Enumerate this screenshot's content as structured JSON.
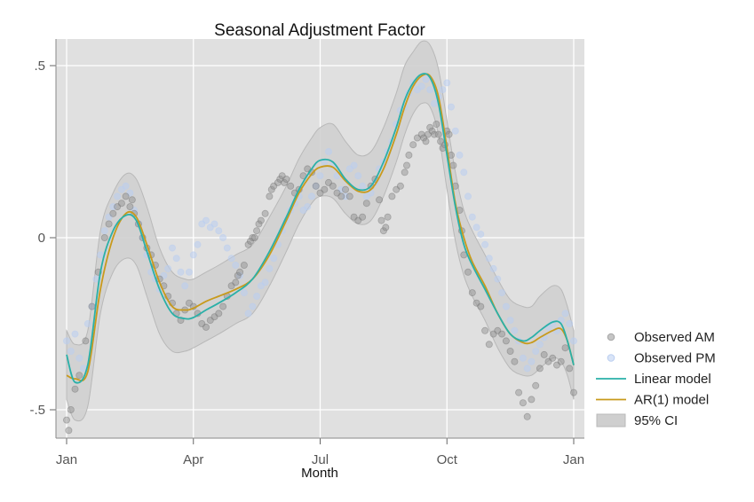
{
  "chart_data": {
    "type": "line",
    "title": "Seasonal Adjustment Factor",
    "xlabel": "Month",
    "ylabel": "",
    "xlim": [
      0,
      12
    ],
    "ylim": [
      -0.6,
      0.58
    ],
    "x_ticks": [
      {
        "value": 0,
        "label": "Jan"
      },
      {
        "value": 3,
        "label": "Apr"
      },
      {
        "value": 6,
        "label": "Jul"
      },
      {
        "value": 9,
        "label": "Oct"
      },
      {
        "value": 12,
        "label": "Jan"
      }
    ],
    "y_ticks": [
      {
        "value": 0.5,
        "label": ".5"
      },
      {
        "value": 0,
        "label": "0"
      },
      {
        "value": -0.5,
        "label": "-.5"
      }
    ],
    "grid": true,
    "legend_position": "right",
    "colors": {
      "plot_background": "#e0e0e0",
      "grid": "#ffffff",
      "linear": "#2ab0a8",
      "ar1": "#c89a1c",
      "ci_fill": "#cfcfcf",
      "ci_stroke": "#b8b8b8",
      "observed_am": "#8c8c8c",
      "observed_pm": "#b9cdf0"
    },
    "series": [
      {
        "name": "Linear model",
        "kind": "line",
        "x": [
          0,
          0.2,
          0.5,
          0.8,
          1.1,
          1.4,
          1.65,
          1.9,
          2.2,
          2.5,
          2.8,
          3.0,
          3.3,
          3.6,
          4.0,
          4.4,
          4.8,
          5.2,
          5.5,
          5.8,
          6.0,
          6.3,
          6.6,
          6.9,
          7.2,
          7.5,
          7.8,
          8.0,
          8.2,
          8.4,
          8.6,
          8.8,
          9.0,
          9.2,
          9.4,
          9.6,
          9.9,
          10.2,
          10.5,
          10.8,
          11.0,
          11.2,
          11.5,
          11.7,
          11.85,
          12.0
        ],
        "y": [
          -0.34,
          -0.42,
          -0.37,
          -0.1,
          0.02,
          0.065,
          0.05,
          -0.04,
          -0.15,
          -0.22,
          -0.235,
          -0.232,
          -0.21,
          -0.19,
          -0.16,
          -0.12,
          -0.04,
          0.06,
          0.14,
          0.2,
          0.225,
          0.22,
          0.17,
          0.14,
          0.15,
          0.22,
          0.32,
          0.4,
          0.45,
          0.475,
          0.465,
          0.39,
          0.24,
          0.09,
          -0.02,
          -0.08,
          -0.15,
          -0.22,
          -0.28,
          -0.3,
          -0.29,
          -0.27,
          -0.245,
          -0.25,
          -0.3,
          -0.37
        ]
      },
      {
        "name": "AR(1) model",
        "kind": "line",
        "x": [
          0,
          0.2,
          0.5,
          0.8,
          1.1,
          1.4,
          1.65,
          1.9,
          2.2,
          2.5,
          2.8,
          3.0,
          3.3,
          3.6,
          4.0,
          4.4,
          4.8,
          5.2,
          5.5,
          5.8,
          6.0,
          6.3,
          6.6,
          6.9,
          7.2,
          7.5,
          7.8,
          8.0,
          8.2,
          8.4,
          8.6,
          8.8,
          9.0,
          9.2,
          9.4,
          9.6,
          9.9,
          10.2,
          10.5,
          10.8,
          11.0,
          11.2,
          11.5,
          11.7,
          11.85,
          12.0
        ],
        "y": [
          -0.4,
          -0.41,
          -0.39,
          -0.15,
          0.0,
          0.07,
          0.06,
          -0.02,
          -0.13,
          -0.2,
          -0.21,
          -0.205,
          -0.185,
          -0.17,
          -0.15,
          -0.12,
          -0.05,
          0.05,
          0.13,
          0.185,
          0.205,
          0.205,
          0.165,
          0.135,
          0.14,
          0.2,
          0.3,
          0.38,
          0.44,
          0.47,
          0.47,
          0.41,
          0.26,
          0.1,
          0.0,
          -0.07,
          -0.14,
          -0.22,
          -0.28,
          -0.305,
          -0.305,
          -0.29,
          -0.27,
          -0.265,
          -0.3,
          -0.37
        ]
      },
      {
        "name": "95% CI",
        "kind": "band",
        "x": [
          0,
          0.2,
          0.5,
          0.8,
          1.1,
          1.4,
          1.65,
          1.9,
          2.2,
          2.5,
          2.8,
          3.0,
          3.3,
          3.6,
          4.0,
          4.4,
          4.8,
          5.2,
          5.5,
          5.8,
          6.0,
          6.3,
          6.6,
          6.9,
          7.2,
          7.5,
          7.8,
          8.0,
          8.2,
          8.4,
          8.6,
          8.8,
          9.0,
          9.2,
          9.4,
          9.6,
          9.9,
          10.2,
          10.5,
          10.8,
          11.0,
          11.2,
          11.5,
          11.7,
          11.85,
          12.0
        ],
        "lower": [
          -0.47,
          -0.53,
          -0.49,
          -0.22,
          -0.1,
          -0.06,
          -0.08,
          -0.17,
          -0.28,
          -0.33,
          -0.33,
          -0.32,
          -0.3,
          -0.28,
          -0.25,
          -0.22,
          -0.14,
          -0.04,
          0.04,
          0.1,
          0.12,
          0.115,
          0.07,
          0.04,
          0.05,
          0.12,
          0.22,
          0.3,
          0.36,
          0.39,
          0.38,
          0.3,
          0.14,
          -0.01,
          -0.11,
          -0.17,
          -0.24,
          -0.32,
          -0.38,
          -0.4,
          -0.4,
          -0.38,
          -0.35,
          -0.36,
          -0.4,
          -0.47
        ],
        "upper": [
          -0.27,
          -0.31,
          -0.27,
          0.02,
          0.13,
          0.185,
          0.17,
          0.09,
          -0.03,
          -0.1,
          -0.12,
          -0.12,
          -0.1,
          -0.08,
          -0.05,
          -0.02,
          0.06,
          0.15,
          0.23,
          0.29,
          0.32,
          0.33,
          0.28,
          0.24,
          0.25,
          0.32,
          0.42,
          0.5,
          0.54,
          0.57,
          0.56,
          0.49,
          0.34,
          0.19,
          0.08,
          0.02,
          -0.05,
          -0.12,
          -0.18,
          -0.2,
          -0.2,
          -0.17,
          -0.14,
          -0.15,
          -0.2,
          -0.27
        ]
      },
      {
        "name": "Observed AM",
        "kind": "scatter",
        "x": [
          0.0,
          0.05,
          0.1,
          0.2,
          0.3,
          0.45,
          0.6,
          0.75,
          0.9,
          1.0,
          1.1,
          1.2,
          1.3,
          1.4,
          1.5,
          1.55,
          1.6,
          1.7,
          1.8,
          1.9,
          2.0,
          2.1,
          2.2,
          2.3,
          2.4,
          2.5,
          2.6,
          2.7,
          2.8,
          2.9,
          3.0,
          3.1,
          3.2,
          3.3,
          3.4,
          3.5,
          3.6,
          3.7,
          3.8,
          3.9,
          4.0,
          4.05,
          4.1,
          4.2,
          4.3,
          4.35,
          4.4,
          4.45,
          4.5,
          4.55,
          4.6,
          4.7,
          4.8,
          4.85,
          4.9,
          5.0,
          5.05,
          5.1,
          5.15,
          5.2,
          5.3,
          5.4,
          5.5,
          5.6,
          5.7,
          5.8,
          5.9,
          6.0,
          6.1,
          6.2,
          6.3,
          6.4,
          6.5,
          6.6,
          6.7,
          6.8,
          6.9,
          7.0,
          7.1,
          7.2,
          7.3,
          7.4,
          7.45,
          7.5,
          7.55,
          7.6,
          7.7,
          7.8,
          7.9,
          8.0,
          8.05,
          8.1,
          8.2,
          8.3,
          8.4,
          8.45,
          8.5,
          8.55,
          8.6,
          8.65,
          8.7,
          8.75,
          8.8,
          8.85,
          8.9,
          8.95,
          9.0,
          9.05,
          9.1,
          9.15,
          9.2,
          9.3,
          9.35,
          9.4,
          9.5,
          9.6,
          9.7,
          9.8,
          9.9,
          10.0,
          10.1,
          10.2,
          10.3,
          10.4,
          10.5,
          10.6,
          10.7,
          10.8,
          10.9,
          11.0,
          11.1,
          11.2,
          11.3,
          11.4,
          11.5,
          11.6,
          11.7,
          11.8,
          11.9,
          12.0
        ],
        "y": [
          -0.53,
          -0.56,
          -0.5,
          -0.44,
          -0.4,
          -0.3,
          -0.2,
          -0.1,
          0.0,
          0.04,
          0.07,
          0.09,
          0.1,
          0.12,
          0.09,
          0.11,
          0.07,
          0.04,
          0.0,
          -0.03,
          -0.05,
          -0.08,
          -0.12,
          -0.14,
          -0.17,
          -0.19,
          -0.22,
          -0.24,
          -0.21,
          -0.19,
          -0.2,
          -0.22,
          -0.25,
          -0.26,
          -0.24,
          -0.23,
          -0.22,
          -0.2,
          -0.17,
          -0.14,
          -0.13,
          -0.11,
          -0.1,
          -0.08,
          -0.02,
          -0.01,
          0.0,
          0.0,
          0.02,
          0.04,
          0.05,
          0.07,
          0.12,
          0.14,
          0.15,
          0.16,
          0.17,
          0.18,
          0.16,
          0.17,
          0.15,
          0.13,
          0.14,
          0.18,
          0.2,
          0.19,
          0.15,
          0.13,
          0.14,
          0.16,
          0.15,
          0.13,
          0.12,
          0.14,
          0.12,
          0.06,
          0.05,
          0.06,
          0.1,
          0.15,
          0.17,
          0.11,
          0.05,
          0.02,
          0.03,
          0.06,
          0.12,
          0.14,
          0.15,
          0.19,
          0.21,
          0.24,
          0.27,
          0.29,
          0.3,
          0.29,
          0.28,
          0.3,
          0.32,
          0.31,
          0.3,
          0.33,
          0.3,
          0.28,
          0.26,
          0.27,
          0.31,
          0.3,
          0.24,
          0.21,
          0.15,
          0.08,
          0.02,
          -0.05,
          -0.1,
          -0.16,
          -0.19,
          -0.2,
          -0.27,
          -0.31,
          -0.28,
          -0.27,
          -0.28,
          -0.3,
          -0.33,
          -0.36,
          -0.45,
          -0.48,
          -0.52,
          -0.47,
          -0.43,
          -0.38,
          -0.34,
          -0.36,
          -0.35,
          -0.37,
          -0.36,
          -0.32,
          -0.38,
          -0.45
        ]
      },
      {
        "name": "Observed PM",
        "kind": "scatter",
        "x": [
          0.0,
          0.1,
          0.2,
          0.3,
          0.4,
          0.5,
          0.6,
          0.7,
          0.8,
          0.9,
          1.0,
          1.1,
          1.2,
          1.3,
          1.4,
          1.5,
          1.6,
          1.7,
          1.8,
          1.9,
          2.0,
          2.1,
          2.2,
          2.3,
          2.4,
          2.5,
          2.6,
          2.7,
          2.8,
          2.9,
          3.0,
          3.1,
          3.2,
          3.3,
          3.4,
          3.5,
          3.6,
          3.7,
          3.8,
          3.9,
          4.0,
          4.1,
          4.2,
          4.3,
          4.4,
          4.5,
          4.6,
          4.7,
          4.8,
          4.9,
          5.0,
          5.1,
          5.2,
          5.3,
          5.4,
          5.5,
          5.6,
          5.7,
          5.8,
          5.9,
          6.0,
          6.1,
          6.2,
          6.3,
          6.4,
          6.5,
          6.6,
          6.7,
          6.8,
          6.9,
          7.0,
          7.1,
          7.2,
          7.3,
          7.4,
          7.5,
          7.6,
          7.7,
          7.8,
          7.9,
          8.0,
          8.1,
          8.2,
          8.3,
          8.4,
          8.5,
          8.6,
          8.7,
          8.8,
          8.9,
          9.0,
          9.1,
          9.2,
          9.3,
          9.4,
          9.5,
          9.6,
          9.7,
          9.8,
          9.9,
          10.0,
          10.1,
          10.2,
          10.3,
          10.4,
          10.5,
          10.6,
          10.7,
          10.8,
          10.9,
          11.0,
          11.1,
          11.2,
          11.3,
          11.4,
          11.5,
          11.6,
          11.7,
          11.8,
          11.9,
          12.0
        ],
        "y": [
          -0.3,
          -0.33,
          -0.28,
          -0.35,
          -0.38,
          -0.25,
          -0.2,
          -0.12,
          -0.05,
          0.02,
          0.06,
          0.09,
          0.12,
          0.14,
          0.15,
          0.13,
          0.08,
          0.04,
          0.0,
          -0.05,
          -0.1,
          -0.12,
          -0.15,
          -0.11,
          -0.09,
          -0.03,
          -0.06,
          -0.1,
          -0.14,
          -0.1,
          -0.05,
          -0.02,
          0.04,
          0.05,
          0.03,
          0.04,
          0.02,
          0.0,
          -0.03,
          -0.06,
          -0.08,
          -0.11,
          -0.16,
          -0.22,
          -0.2,
          -0.17,
          -0.14,
          -0.13,
          -0.09,
          -0.06,
          -0.02,
          0.02,
          0.05,
          0.08,
          0.1,
          0.12,
          0.08,
          0.09,
          0.12,
          0.15,
          0.18,
          0.22,
          0.25,
          0.21,
          0.18,
          0.14,
          0.12,
          0.2,
          0.21,
          0.18,
          0.15,
          0.12,
          0.13,
          0.16,
          0.2,
          0.22,
          0.25,
          0.28,
          0.33,
          0.37,
          0.38,
          0.42,
          0.45,
          0.43,
          0.44,
          0.46,
          0.43,
          0.39,
          0.41,
          0.43,
          0.45,
          0.38,
          0.31,
          0.24,
          0.19,
          0.12,
          0.06,
          0.03,
          0.01,
          -0.02,
          -0.06,
          -0.09,
          -0.12,
          -0.16,
          -0.2,
          -0.24,
          -0.27,
          -0.3,
          -0.35,
          -0.38,
          -0.36,
          -0.33,
          -0.31,
          -0.29,
          -0.26,
          -0.25,
          -0.27,
          -0.24,
          -0.22,
          -0.25,
          -0.3
        ]
      }
    ]
  },
  "legend": {
    "items": [
      {
        "label": "Observed AM",
        "symbol": "am-dot"
      },
      {
        "label": "Observed PM",
        "symbol": "pm-dot"
      },
      {
        "label": "Linear model",
        "symbol": "linear-line"
      },
      {
        "label": "AR(1) model",
        "symbol": "ar1-line"
      },
      {
        "label": "95% CI",
        "symbol": "ci-box"
      }
    ]
  }
}
